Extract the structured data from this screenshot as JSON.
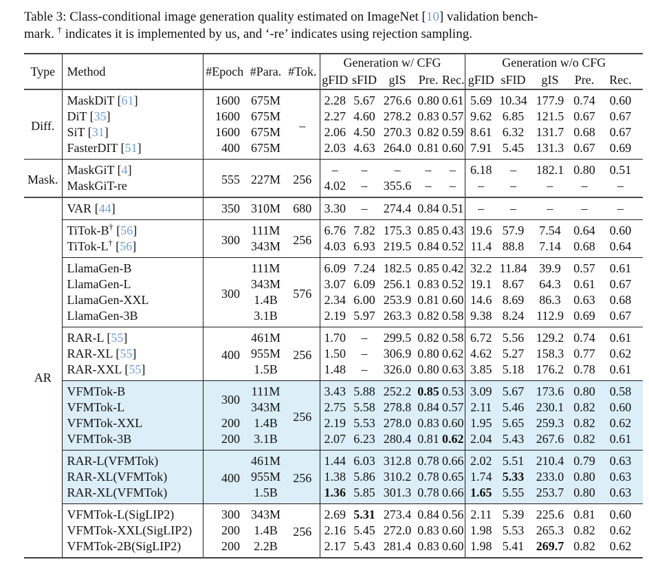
{
  "caption": {
    "line1_before_cite": "Table 3: Class-conditional image generation quality estimated on ImageNet [",
    "cite": "10",
    "line1_after_cite": "] validation bench-",
    "line2_pre": "mark. ",
    "dagger": "†",
    "line2_rest": " indicates it is implemented by us, and ‘-re’ indicates using rejection sampling."
  },
  "table": {
    "citation_prefix": " [",
    "citation_suffix": "]",
    "header": {
      "type": "Type",
      "method": "Method",
      "epoch": "#Epoch",
      "para": "#Para.",
      "tok": "#Tok.",
      "cfg_group": "Generation w/ CFG",
      "nocfg_group": "Generation w/o CFG",
      "metrics": [
        "gFID",
        "sFID",
        "gIS",
        "Pre.",
        "Rec."
      ]
    },
    "highlight_color": "#dceef7",
    "citation_color": "#6f9fd8",
    "groups": [
      {
        "type": {
          "label": "Diff.",
          "span": 4
        },
        "rule": "thick",
        "rows": [
          {
            "method": {
              "text": "MaskDiT",
              "cite": "61"
            },
            "epoch": {
              "v": "1600"
            },
            "para": {
              "v": "675M"
            },
            "tok": {
              "v": "–",
              "span": 4
            },
            "cfg": [
              "2.28",
              "5.67",
              "276.6",
              "0.80",
              "0.61"
            ],
            "nocfg": [
              "5.69",
              "10.34",
              "177.9",
              "0.74",
              "0.60"
            ]
          },
          {
            "method": {
              "text": "DiT",
              "cite": "35"
            },
            "epoch": {
              "v": "1600"
            },
            "para": {
              "v": "675M"
            },
            "cfg": [
              "2.27",
              "4.60",
              "278.2",
              "0.83",
              "0.57"
            ],
            "nocfg": [
              "9.62",
              "6.85",
              "121.5",
              "0.67",
              "0.67"
            ]
          },
          {
            "method": {
              "text": "SiT",
              "cite": "31"
            },
            "epoch": {
              "v": "1600"
            },
            "para": {
              "v": "675M"
            },
            "cfg": [
              "2.06",
              "4.50",
              "270.3",
              "0.82",
              "0.59"
            ],
            "nocfg": [
              "8.61",
              "6.32",
              "131.7",
              "0.68",
              "0.67"
            ]
          },
          {
            "method": {
              "text": "FasterDIT",
              "cite": "51"
            },
            "epoch": {
              "v": "400"
            },
            "para": {
              "v": "675M"
            },
            "cfg": [
              "2.03",
              "4.63",
              "264.0",
              "0.81",
              "0.60"
            ],
            "nocfg": [
              "7.91",
              "5.45",
              "131.3",
              "0.67",
              "0.69"
            ]
          }
        ]
      },
      {
        "type": {
          "label": "Mask.",
          "span": 2
        },
        "rule": "thin",
        "rows": [
          {
            "method": {
              "text": "MaskGiT",
              "cite": "4"
            },
            "epoch": {
              "v": "555",
              "span": 2
            },
            "para": {
              "v": "227M",
              "span": 2
            },
            "tok": {
              "v": "256",
              "span": 2
            },
            "cfg": [
              "–",
              "–",
              "–",
              "–",
              "–"
            ],
            "nocfg": [
              "6.18",
              "–",
              "182.1",
              "0.80",
              "0.51"
            ]
          },
          {
            "method": {
              "text": "MaskGiT-re"
            },
            "cfg": [
              "4.02",
              "–",
              "355.6",
              "–",
              "–"
            ],
            "nocfg": [
              "–",
              "–",
              "–",
              "–",
              "–"
            ]
          }
        ]
      },
      {
        "type": {
          "label": "AR",
          "span": 20
        },
        "rule": "thick",
        "rows": [
          {
            "method": {
              "text": "VAR",
              "cite": "44"
            },
            "epoch": {
              "v": "350"
            },
            "para": {
              "v": "310M"
            },
            "tok": {
              "v": "680"
            },
            "cfg": [
              "3.30",
              "–",
              "274.4",
              "0.84",
              "0.51"
            ],
            "nocfg": [
              "–",
              "–",
              "–",
              "–",
              "–"
            ]
          }
        ]
      },
      {
        "rule": "thin",
        "rows": [
          {
            "method": {
              "text": "TiTok-B",
              "sup": "†",
              "cite": "56"
            },
            "epoch": {
              "v": "300",
              "span": 2
            },
            "para": {
              "v": "111M"
            },
            "tok": {
              "v": "256",
              "span": 2
            },
            "cfg": [
              "6.76",
              "7.82",
              "175.3",
              "0.85",
              "0.43"
            ],
            "nocfg": [
              "19.6",
              "57.9",
              "7.54",
              "0.64",
              "0.60"
            ]
          },
          {
            "method": {
              "text": "TiTok-L",
              "sup": "†",
              "cite": "56"
            },
            "para": {
              "v": "343M"
            },
            "cfg": [
              "4.03",
              "6.93",
              "219.5",
              "0.84",
              "0.52"
            ],
            "nocfg": [
              "11.4",
              "88.8",
              "7.14",
              "0.68",
              "0.64"
            ]
          }
        ]
      },
      {
        "rule": "thin",
        "rows": [
          {
            "method": {
              "text": "LlamaGen-B"
            },
            "epoch": {
              "v": "300",
              "span": 4
            },
            "para": {
              "v": "111M"
            },
            "tok": {
              "v": "576",
              "span": 4
            },
            "cfg": [
              "6.09",
              "7.24",
              "182.5",
              "0.85",
              "0.42"
            ],
            "nocfg": [
              "32.2",
              "11.84",
              "39.9",
              "0.57",
              "0.61"
            ]
          },
          {
            "method": {
              "text": "LlamaGen-L"
            },
            "para": {
              "v": "343M"
            },
            "cfg": [
              "3.07",
              "6.09",
              "256.1",
              "0.83",
              "0.52"
            ],
            "nocfg": [
              "19.1",
              "8.67",
              "64.3",
              "0.61",
              "0.67"
            ]
          },
          {
            "method": {
              "text": "LlamaGen-XXL"
            },
            "para": {
              "v": "1.4B"
            },
            "cfg": [
              "2.34",
              "6.00",
              "253.9",
              "0.81",
              "0.60"
            ],
            "nocfg": [
              "14.6",
              "8.69",
              "86.3",
              "0.63",
              "0.68"
            ]
          },
          {
            "method": {
              "text": "LlamaGen-3B"
            },
            "para": {
              "v": "3.1B"
            },
            "cfg": [
              "2.19",
              "5.97",
              "263.3",
              "0.82",
              "0.58"
            ],
            "nocfg": [
              "9.38",
              "8.24",
              "112.9",
              "0.69",
              "0.67"
            ]
          }
        ]
      },
      {
        "rule": "thin",
        "rows": [
          {
            "method": {
              "text": "RAR-L",
              "cite": "55"
            },
            "epoch": {
              "v": "400",
              "span": 3
            },
            "para": {
              "v": "461M"
            },
            "tok": {
              "v": "256",
              "span": 3
            },
            "cfg": [
              "1.70",
              "–",
              "299.5",
              "0.82",
              "0.58"
            ],
            "nocfg": [
              "6.72",
              "5.56",
              "129.2",
              "0.74",
              "0.61"
            ]
          },
          {
            "method": {
              "text": "RAR-XL",
              "cite": "55"
            },
            "para": {
              "v": "955M"
            },
            "cfg": [
              "1.50",
              "–",
              "306.9",
              "0.80",
              "0.62"
            ],
            "nocfg": [
              "4.62",
              "5.27",
              "158.3",
              "0.77",
              "0.62"
            ]
          },
          {
            "method": {
              "text": "RAR-XXL",
              "cite": "55"
            },
            "para": {
              "v": "1.5B"
            },
            "cfg": [
              "1.48",
              "–",
              "326.0",
              "0.80",
              "0.63"
            ],
            "nocfg": [
              "3.85",
              "5.18",
              "176.2",
              "0.78",
              "0.61"
            ]
          }
        ]
      },
      {
        "rule": "thin",
        "highlight": true,
        "rows": [
          {
            "method": {
              "text": "VFMTok-B"
            },
            "epoch": {
              "v": "300",
              "span": 2
            },
            "para": {
              "v": "111M"
            },
            "tok": {
              "v": "256",
              "span": 4
            },
            "cfg": [
              "3.43",
              "5.88",
              "252.2",
              "0.85",
              "0.53"
            ],
            "cfg_bold": [
              3
            ],
            "nocfg": [
              "3.09",
              "5.67",
              "173.6",
              "0.80",
              "0.58"
            ]
          },
          {
            "method": {
              "text": "VFMTok-L"
            },
            "para": {
              "v": "343M"
            },
            "cfg": [
              "2.75",
              "5.58",
              "278.8",
              "0.84",
              "0.57"
            ],
            "nocfg": [
              "2.11",
              "5.46",
              "230.1",
              "0.82",
              "0.60"
            ]
          },
          {
            "method": {
              "text": "VFMTok-XXL"
            },
            "epoch": {
              "v": "200"
            },
            "para": {
              "v": "1.4B"
            },
            "cfg": [
              "2.19",
              "5.53",
              "278.0",
              "0.83",
              "0.60"
            ],
            "nocfg": [
              "1.95",
              "5.65",
              "259.3",
              "0.82",
              "0.62"
            ]
          },
          {
            "method": {
              "text": "VFMTok-3B"
            },
            "epoch": {
              "v": "200"
            },
            "para": {
              "v": "3.1B"
            },
            "cfg": [
              "2.07",
              "6.23",
              "280.4",
              "0.81",
              "0.62"
            ],
            "cfg_bold": [
              4
            ],
            "nocfg": [
              "2.04",
              "5.43",
              "267.6",
              "0.82",
              "0.61"
            ]
          }
        ]
      },
      {
        "rule": "thin",
        "highlight": true,
        "rows": [
          {
            "method": {
              "text": "RAR-L(VFMTok)"
            },
            "epoch": {
              "v": "400",
              "span": 3
            },
            "para": {
              "v": "461M"
            },
            "tok": {
              "v": "256",
              "span": 3
            },
            "cfg": [
              "1.44",
              "6.03",
              "312.8",
              "0.78",
              "0.66"
            ],
            "nocfg": [
              "2.02",
              "5.51",
              "210.4",
              "0.79",
              "0.63"
            ]
          },
          {
            "method": {
              "text": "RAR-XL(VFMTok)"
            },
            "para": {
              "v": "955M"
            },
            "cfg": [
              "1.38",
              "5.86",
              "310.2",
              "0.78",
              "0.65"
            ],
            "nocfg": [
              "1.74",
              "5.33",
              "233.0",
              "0.80",
              "0.63"
            ],
            "nocfg_bold": [
              1
            ]
          },
          {
            "method": {
              "text": "RAR-XL(VFMTok)"
            },
            "para": {
              "v": "1.5B"
            },
            "cfg": [
              "1.36",
              "5.85",
              "301.3",
              "0.78",
              "0.66"
            ],
            "cfg_bold": [
              0
            ],
            "nocfg": [
              "1.65",
              "5.55",
              "253.7",
              "0.80",
              "0.63"
            ],
            "nocfg_bold": [
              0
            ]
          }
        ]
      },
      {
        "rule": "thin",
        "rows": [
          {
            "method": {
              "text": "VFMTok-L(SigLIP2)"
            },
            "epoch": {
              "v": "300"
            },
            "para": {
              "v": "343M"
            },
            "tok": {
              "v": "256",
              "span": 3
            },
            "cfg": [
              "2.69",
              "5.31",
              "273.4",
              "0.84",
              "0.56"
            ],
            "cfg_bold": [
              1
            ],
            "nocfg": [
              "2.11",
              "5.39",
              "225.6",
              "0.81",
              "0.60"
            ]
          },
          {
            "method": {
              "text": "VFMTok-XXL(SigLIP2)"
            },
            "epoch": {
              "v": "200"
            },
            "para": {
              "v": "1.4B"
            },
            "cfg": [
              "2.16",
              "5.45",
              "272.0",
              "0.83",
              "0.60"
            ],
            "nocfg": [
              "1.98",
              "5.53",
              "265.3",
              "0.82",
              "0.62"
            ]
          },
          {
            "method": {
              "text": "VFMTok-2B(SigLIP2)"
            },
            "epoch": {
              "v": "200"
            },
            "para": {
              "v": "2.2B"
            },
            "cfg": [
              "2.17",
              "5.43",
              "281.4",
              "0.83",
              "0.60"
            ],
            "nocfg": [
              "1.98",
              "5.41",
              "269.7",
              "0.82",
              "0.62"
            ],
            "nocfg_bold": [
              2
            ]
          }
        ]
      }
    ]
  }
}
